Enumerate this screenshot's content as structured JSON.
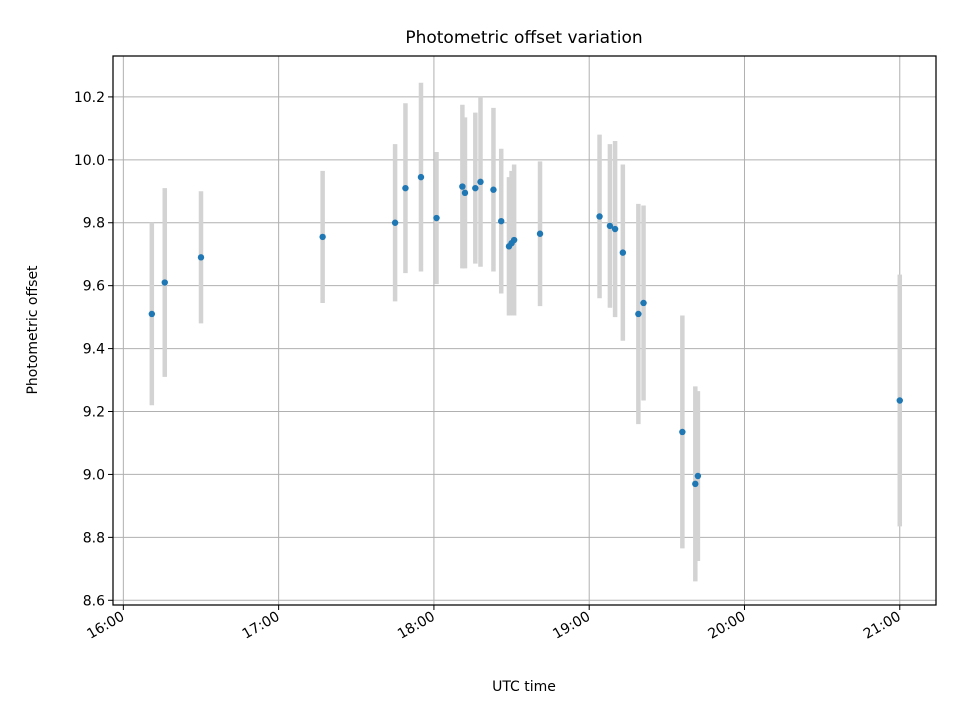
{
  "chart_data": {
    "type": "scatter",
    "title": "Photometric offset variation",
    "xlabel": "UTC time",
    "ylabel": "Photometric offset",
    "x_ticks": [
      "16:00",
      "17:00",
      "18:00",
      "19:00",
      "20:00",
      "21:00"
    ],
    "y_ticks": [
      "8.6",
      "8.8",
      "9.0",
      "9.2",
      "9.4",
      "9.6",
      "9.8",
      "10.0",
      "10.2"
    ],
    "xlim": [
      "15:56",
      "21:14"
    ],
    "ylim": [
      8.585,
      10.33
    ],
    "grid": true,
    "series": [
      {
        "marker_color": "#1f77b4",
        "error_bar_color": "#d3d3d3",
        "points": [
          {
            "x": "16:11",
            "y": 9.51,
            "yerr": 0.29
          },
          {
            "x": "16:16",
            "y": 9.61,
            "yerr": 0.3
          },
          {
            "x": "16:30",
            "y": 9.69,
            "yerr": 0.21
          },
          {
            "x": "17:17",
            "y": 9.755,
            "yerr": 0.21
          },
          {
            "x": "17:45",
            "y": 9.8,
            "yerr": 0.25
          },
          {
            "x": "17:49",
            "y": 9.91,
            "yerr": 0.27
          },
          {
            "x": "17:55",
            "y": 9.945,
            "yerr": 0.3
          },
          {
            "x": "18:01",
            "y": 9.815,
            "yerr": 0.21
          },
          {
            "x": "18:11",
            "y": 9.915,
            "yerr": 0.26
          },
          {
            "x": "18:12",
            "y": 9.895,
            "yerr": 0.24
          },
          {
            "x": "18:16",
            "y": 9.91,
            "yerr": 0.24
          },
          {
            "x": "18:18",
            "y": 9.93,
            "yerr": 0.27
          },
          {
            "x": "18:23",
            "y": 9.905,
            "yerr": 0.26
          },
          {
            "x": "18:26",
            "y": 9.805,
            "yerr": 0.23
          },
          {
            "x": "18:29",
            "y": 9.725,
            "yerr": 0.22
          },
          {
            "x": "18:30",
            "y": 9.735,
            "yerr": 0.23
          },
          {
            "x": "18:31",
            "y": 9.745,
            "yerr": 0.24
          },
          {
            "x": "18:41",
            "y": 9.765,
            "yerr": 0.23
          },
          {
            "x": "19:04",
            "y": 9.82,
            "yerr": 0.26
          },
          {
            "x": "19:08",
            "y": 9.79,
            "yerr": 0.26
          },
          {
            "x": "19:10",
            "y": 9.78,
            "yerr": 0.28
          },
          {
            "x": "19:13",
            "y": 9.705,
            "yerr": 0.28
          },
          {
            "x": "19:19",
            "y": 9.51,
            "yerr": 0.35
          },
          {
            "x": "19:21",
            "y": 9.545,
            "yerr": 0.31
          },
          {
            "x": "19:36",
            "y": 9.135,
            "yerr": 0.37
          },
          {
            "x": "19:41",
            "y": 8.97,
            "yerr": 0.31
          },
          {
            "x": "19:42",
            "y": 8.995,
            "yerr": 0.27
          },
          {
            "x": "21:00",
            "y": 9.235,
            "yerr": 0.4
          }
        ]
      }
    ]
  }
}
